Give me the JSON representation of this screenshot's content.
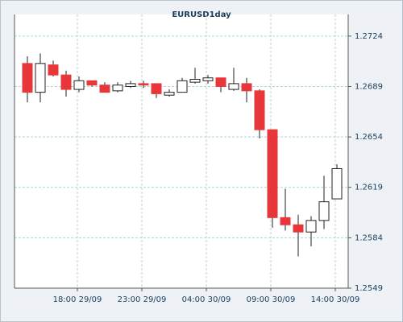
{
  "chart_data": {
    "type": "candlestick",
    "title": "EURUSD1day",
    "categories": [
      null,
      null,
      null,
      null,
      "18:00 29/09",
      null,
      null,
      null,
      null,
      "23:00 29/09",
      null,
      null,
      null,
      null,
      "04:00 30/09",
      null,
      null,
      null,
      null,
      "09:00 30/09",
      null,
      null,
      null,
      null,
      "14:00 30/09"
    ],
    "open": [
      1.2705,
      1.2685,
      1.2704,
      1.2697,
      1.2687,
      1.2693,
      1.269,
      1.2686,
      1.2689,
      1.2691,
      1.2691,
      1.2683,
      1.2685,
      1.2692,
      1.2693,
      1.2695,
      1.2687,
      1.2691,
      1.2686,
      1.2659,
      1.2598,
      1.2593,
      1.2588,
      1.2596,
      1.2611
    ],
    "high": [
      1.271,
      1.2712,
      1.2707,
      1.27,
      1.2696,
      1.2693,
      1.2692,
      1.2692,
      1.2693,
      1.2693,
      1.2691,
      1.2687,
      1.2695,
      1.2702,
      1.2697,
      1.2695,
      1.2702,
      1.2695,
      1.2687,
      1.2659,
      1.2618,
      1.26,
      1.2599,
      1.2627,
      1.2635
    ],
    "low": [
      1.2678,
      1.2678,
      1.2696,
      1.2682,
      1.2685,
      1.2689,
      1.2685,
      1.2685,
      1.2688,
      1.2688,
      1.2681,
      1.2682,
      1.2685,
      1.2691,
      1.2691,
      1.2685,
      1.2686,
      1.2678,
      1.2653,
      1.2591,
      1.2589,
      1.2571,
      1.2578,
      1.259,
      1.2611
    ],
    "close": [
      1.2685,
      1.2705,
      1.2697,
      1.2687,
      1.2693,
      1.269,
      1.2685,
      1.269,
      1.2691,
      1.269,
      1.2684,
      1.2685,
      1.2693,
      1.2694,
      1.2695,
      1.2689,
      1.2691,
      1.2686,
      1.2659,
      1.2598,
      1.2593,
      1.2588,
      1.2596,
      1.2609,
      1.2632
    ],
    "up_color": "#ffffff",
    "down_color": "#e8373b",
    "ylim": [
      1.2549,
      1.2739
    ],
    "yticks": [
      1.2549,
      1.2584,
      1.2619,
      1.2654,
      1.2689,
      1.2724
    ],
    "grid": true
  }
}
